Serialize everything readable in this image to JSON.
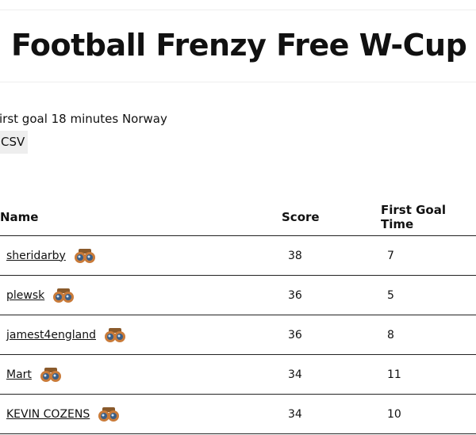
{
  "header": {
    "title": "Football Frenzy Free W-Cup"
  },
  "info": "irst goal 18 minutes Norway",
  "button": "CSV",
  "table": {
    "columns": [
      "Name",
      "Score",
      "First Goal Time"
    ],
    "rows": [
      [
        "sheridarby",
        38,
        7
      ],
      [
        "plewsk",
        36,
        5
      ],
      [
        "jamest4england",
        36,
        8
      ],
      [
        "Mart",
        34,
        11
      ],
      [
        "KEVIN COZENS",
        34,
        10
      ]
    ]
  }
}
